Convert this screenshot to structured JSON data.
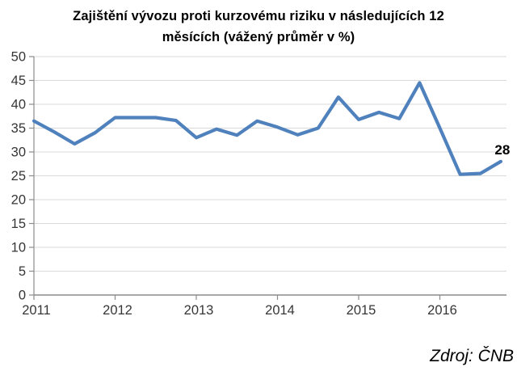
{
  "title": {
    "line1": "Zajištění vývozu proti kurzovému riziku v následujících 12",
    "line2": "měsících (vážený průměr v %)"
  },
  "source_label": "Zdroj: ČNB",
  "colors": {
    "line": "#4f81bd",
    "grid": "#d9d9d9",
    "axis": "#8c8c8c",
    "tick_label": "#363636",
    "annotation": "#000000"
  },
  "chart_data": {
    "type": "line",
    "title": "Zajištění vývozu proti kurzovému riziku v následujících 12 měsících (vážený průměr v %)",
    "categories": [
      "2011 Q1",
      "2011 Q2",
      "2011 Q3",
      "2011 Q4",
      "2012 Q1",
      "2012 Q2",
      "2012 Q3",
      "2012 Q4",
      "2013 Q1",
      "2013 Q2",
      "2013 Q3",
      "2013 Q4",
      "2014 Q1",
      "2014 Q2",
      "2014 Q3",
      "2014 Q4",
      "2015 Q1",
      "2015 Q2",
      "2015 Q3",
      "2015 Q4",
      "2016 Q1",
      "2016 Q2",
      "2016 Q3",
      "2016 Q4"
    ],
    "values": [
      36.5,
      34.2,
      31.7,
      34.0,
      37.2,
      37.2,
      37.2,
      36.6,
      33.0,
      34.8,
      33.5,
      36.5,
      35.2,
      33.6,
      35.0,
      41.5,
      36.8,
      38.3,
      37.0,
      44.5,
      35.0,
      25.3,
      25.5,
      28.0
    ],
    "x_axis": {
      "tick_labels": [
        "2011",
        "2012",
        "2013",
        "2014",
        "2015",
        "2016"
      ],
      "points_per_tick": 4
    },
    "y_axis": {
      "min": 0,
      "max": 50,
      "step": 5,
      "tick_labels": [
        "0",
        "5",
        "10",
        "15",
        "20",
        "25",
        "30",
        "35",
        "40",
        "45",
        "50"
      ]
    },
    "grid": true,
    "legend": "none",
    "last_point_label": "28",
    "source": "Zdroj: ČNB"
  }
}
